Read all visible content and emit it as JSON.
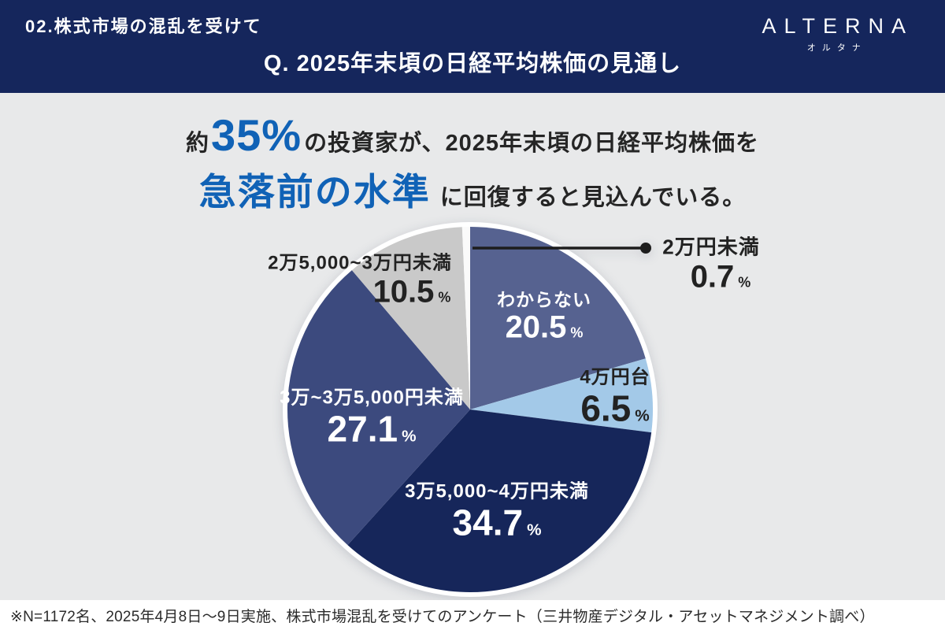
{
  "header": {
    "section_label": "02.株式市場の混乱を受けて",
    "title": "Q. 2025年末頃の日経平均株価の見通し",
    "logo": {
      "name": "ALTERNA",
      "subtitle": "オルタナ"
    }
  },
  "headline": {
    "prefix": "約",
    "stat": "35%",
    "middle": "の投資家が、2025年末頃の日経平均株価を",
    "highlight": "急落前の水準",
    "suffix": "に回復すると見込んでいる。"
  },
  "chart_data": {
    "type": "pie",
    "title": "2025年末頃の日経平均株価の見通し",
    "unit": "%",
    "start_angle_deg": 0,
    "direction": "clockwise",
    "slices": [
      {
        "label": "わからない",
        "value": 20.5,
        "color": "#566290",
        "text_color": "#ffffff"
      },
      {
        "label": "4万円台",
        "value": 6.5,
        "color": "#A3C9E8",
        "text_color": "#222222"
      },
      {
        "label": "3万5,000~4万円未満",
        "value": 34.7,
        "color": "#16265A",
        "text_color": "#ffffff"
      },
      {
        "label": "3万~3万5,000円未満",
        "value": 27.1,
        "color": "#3C4A7E",
        "text_color": "#ffffff"
      },
      {
        "label": "2万5,000~3万円未満",
        "value": 10.5,
        "color": "#C9C9C9",
        "text_color": "#222222"
      },
      {
        "label": "2万円未満",
        "value": 0.7,
        "color": "#FAFAFA",
        "text_color": "#222222"
      }
    ]
  },
  "footer": {
    "note": "※N=1172名、2025年4月8日〜9日実施、株式市場混乱を受けてのアンケート（三井物産デジタル・アセットマネジメント調べ）"
  },
  "colors": {
    "header_bg": "#15265C",
    "body_bg": "#E8E9EA",
    "accent_blue": "#1062B6",
    "text_dark": "#252525",
    "callout": "#1d1d1d"
  }
}
